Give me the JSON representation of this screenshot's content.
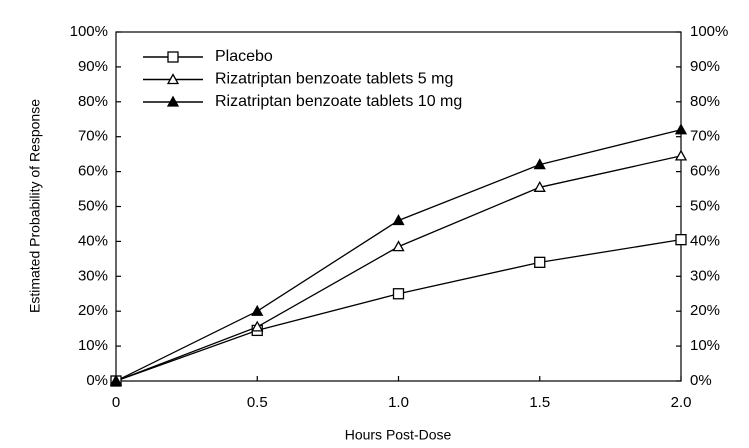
{
  "chart_data": {
    "type": "line",
    "x_label": "Hours Post-Dose",
    "y_label": "Estimated Probability of Response",
    "x": [
      0,
      0.5,
      1,
      1.5,
      2
    ],
    "series": [
      {
        "name": "Placebo",
        "color": "#000000",
        "marker": "square-open",
        "values": [
          0,
          14.5,
          25,
          34,
          40.5
        ]
      },
      {
        "name": "Rizatriptan benzoate tablets 5 mg",
        "color": "#000000",
        "marker": "triangle-open",
        "values": [
          0,
          15.5,
          38.5,
          55.5,
          64.5
        ]
      },
      {
        "name": "Rizatriptan benzoate tablets 10 mg",
        "color": "#000000",
        "marker": "triangle-filled",
        "values": [
          0,
          20,
          46,
          62,
          72
        ]
      }
    ],
    "xlim": [
      0,
      2
    ],
    "xticks": [
      0,
      0.5,
      {
        "value": 1,
        "label": "1.0"
      },
      1.5,
      {
        "value": 2,
        "label": "2.0"
      }
    ],
    "ylim": [
      0,
      100
    ],
    "yticks": [
      {
        "value": 0,
        "label": "0%"
      },
      {
        "value": 10,
        "label": "10%"
      },
      {
        "value": 20,
        "label": "20%"
      },
      {
        "value": 30,
        "label": "30%"
      },
      {
        "value": 40,
        "label": "40%"
      },
      {
        "value": 50,
        "label": "50%"
      },
      {
        "value": 60,
        "label": "60%"
      },
      {
        "value": 70,
        "label": "70%"
      },
      {
        "value": 80,
        "label": "80%"
      },
      {
        "value": 90,
        "label": "90%"
      },
      {
        "value": 100,
        "label": "100%"
      }
    ],
    "y2lim": [
      0,
      100
    ],
    "y2ticks": [
      {
        "value": 0,
        "label": "0%"
      },
      {
        "value": 10,
        "label": "10%"
      },
      {
        "value": 20,
        "label": "20%"
      },
      {
        "value": 30,
        "label": "30%"
      },
      {
        "value": 40,
        "label": "40%"
      },
      {
        "value": 50,
        "label": "50%"
      },
      {
        "value": 60,
        "label": "60%"
      },
      {
        "value": 70,
        "label": "70%"
      },
      {
        "value": 80,
        "label": "80%"
      },
      {
        "value": 90,
        "label": "90%"
      },
      {
        "value": 100,
        "label": "100%"
      }
    ],
    "legend": "top-left"
  }
}
